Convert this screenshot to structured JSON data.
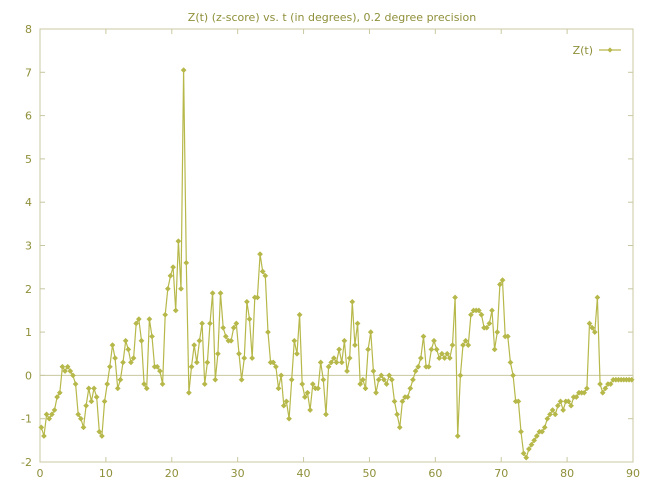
{
  "chart_data": {
    "type": "line",
    "title": "Z(t) (z-score) vs. t (in degrees), 0.2 degree precision",
    "xlabel": "",
    "ylabel": "",
    "xlim": [
      0,
      90
    ],
    "ylim": [
      -2,
      8
    ],
    "x_ticks": [
      0,
      10,
      20,
      30,
      40,
      50,
      60,
      70,
      80,
      90
    ],
    "y_ticks": [
      -2,
      -1,
      0,
      1,
      2,
      3,
      4,
      5,
      6,
      7,
      8
    ],
    "grid": false,
    "legend_position": "top-right",
    "series": [
      {
        "name": "Z(t)",
        "color": "#b7b84a",
        "marker": "diamond",
        "points": [
          [
            0.2,
            -1.2
          ],
          [
            0.6,
            -1.4
          ],
          [
            1.0,
            -0.9
          ],
          [
            1.4,
            -1.0
          ],
          [
            1.8,
            -0.9
          ],
          [
            2.2,
            -0.8
          ],
          [
            2.6,
            -0.5
          ],
          [
            3.0,
            -0.4
          ],
          [
            3.4,
            0.2
          ],
          [
            3.8,
            0.1
          ],
          [
            4.2,
            0.2
          ],
          [
            4.6,
            0.1
          ],
          [
            5.0,
            0.0
          ],
          [
            5.4,
            -0.2
          ],
          [
            5.8,
            -0.9
          ],
          [
            6.2,
            -1.0
          ],
          [
            6.6,
            -1.2
          ],
          [
            7.0,
            -0.7
          ],
          [
            7.4,
            -0.3
          ],
          [
            7.8,
            -0.6
          ],
          [
            8.2,
            -0.3
          ],
          [
            8.6,
            -0.5
          ],
          [
            9.0,
            -1.3
          ],
          [
            9.4,
            -1.4
          ],
          [
            9.8,
            -0.6
          ],
          [
            10.2,
            -0.2
          ],
          [
            10.6,
            0.2
          ],
          [
            11.0,
            0.7
          ],
          [
            11.4,
            0.4
          ],
          [
            11.8,
            -0.3
          ],
          [
            12.2,
            -0.1
          ],
          [
            12.6,
            0.3
          ],
          [
            13.0,
            0.8
          ],
          [
            13.4,
            0.6
          ],
          [
            13.8,
            0.3
          ],
          [
            14.2,
            0.4
          ],
          [
            14.6,
            1.2
          ],
          [
            15.0,
            1.3
          ],
          [
            15.4,
            0.8
          ],
          [
            15.8,
            -0.2
          ],
          [
            16.2,
            -0.3
          ],
          [
            16.6,
            1.3
          ],
          [
            17.0,
            0.9
          ],
          [
            17.4,
            0.2
          ],
          [
            17.8,
            0.2
          ],
          [
            18.2,
            0.1
          ],
          [
            18.6,
            -0.2
          ],
          [
            19.0,
            1.4
          ],
          [
            19.4,
            2.0
          ],
          [
            19.8,
            2.3
          ],
          [
            20.2,
            2.5
          ],
          [
            20.6,
            1.5
          ],
          [
            21.0,
            3.1
          ],
          [
            21.4,
            2.0
          ],
          [
            21.8,
            7.05
          ],
          [
            22.2,
            2.6
          ],
          [
            22.6,
            -0.4
          ],
          [
            23.0,
            0.2
          ],
          [
            23.4,
            0.7
          ],
          [
            23.8,
            0.3
          ],
          [
            24.2,
            0.8
          ],
          [
            24.6,
            1.2
          ],
          [
            25.0,
            -0.2
          ],
          [
            25.4,
            0.3
          ],
          [
            25.8,
            1.2
          ],
          [
            26.2,
            1.9
          ],
          [
            26.6,
            -0.1
          ],
          [
            27.0,
            0.5
          ],
          [
            27.4,
            1.9
          ],
          [
            27.8,
            1.1
          ],
          [
            28.2,
            0.9
          ],
          [
            28.6,
            0.8
          ],
          [
            29.0,
            0.8
          ],
          [
            29.4,
            1.1
          ],
          [
            29.8,
            1.2
          ],
          [
            30.2,
            0.5
          ],
          [
            30.6,
            -0.1
          ],
          [
            31.0,
            0.4
          ],
          [
            31.4,
            1.7
          ],
          [
            31.8,
            1.3
          ],
          [
            32.2,
            0.4
          ],
          [
            32.6,
            1.8
          ],
          [
            33.0,
            1.8
          ],
          [
            33.4,
            2.8
          ],
          [
            33.8,
            2.4
          ],
          [
            34.2,
            2.3
          ],
          [
            34.6,
            1.0
          ],
          [
            35.0,
            0.3
          ],
          [
            35.4,
            0.3
          ],
          [
            35.8,
            0.2
          ],
          [
            36.2,
            -0.3
          ],
          [
            36.6,
            0.0
          ],
          [
            37.0,
            -0.7
          ],
          [
            37.4,
            -0.6
          ],
          [
            37.8,
            -1.0
          ],
          [
            38.2,
            -0.1
          ],
          [
            38.6,
            0.8
          ],
          [
            39.0,
            0.5
          ],
          [
            39.4,
            1.4
          ],
          [
            39.8,
            -0.2
          ],
          [
            40.2,
            -0.5
          ],
          [
            40.6,
            -0.4
          ],
          [
            41.0,
            -0.8
          ],
          [
            41.4,
            -0.2
          ],
          [
            41.8,
            -0.3
          ],
          [
            42.2,
            -0.3
          ],
          [
            42.6,
            0.3
          ],
          [
            43.0,
            -0.1
          ],
          [
            43.4,
            -0.9
          ],
          [
            43.8,
            0.2
          ],
          [
            44.2,
            0.3
          ],
          [
            44.6,
            0.4
          ],
          [
            45.0,
            0.3
          ],
          [
            45.4,
            0.6
          ],
          [
            45.8,
            0.3
          ],
          [
            46.2,
            0.8
          ],
          [
            46.6,
            0.1
          ],
          [
            47.0,
            0.4
          ],
          [
            47.4,
            1.7
          ],
          [
            47.8,
            0.7
          ],
          [
            48.2,
            1.2
          ],
          [
            48.6,
            -0.2
          ],
          [
            49.0,
            -0.1
          ],
          [
            49.4,
            -0.3
          ],
          [
            49.8,
            0.6
          ],
          [
            50.2,
            1.0
          ],
          [
            50.6,
            0.1
          ],
          [
            51.0,
            -0.4
          ],
          [
            51.4,
            -0.1
          ],
          [
            51.8,
            0.0
          ],
          [
            52.2,
            -0.1
          ],
          [
            52.6,
            -0.2
          ],
          [
            53.0,
            0.0
          ],
          [
            53.4,
            -0.1
          ],
          [
            53.8,
            -0.6
          ],
          [
            54.2,
            -0.9
          ],
          [
            54.6,
            -1.2
          ],
          [
            55.0,
            -0.6
          ],
          [
            55.4,
            -0.5
          ],
          [
            55.8,
            -0.5
          ],
          [
            56.2,
            -0.3
          ],
          [
            56.6,
            -0.1
          ],
          [
            57.0,
            0.1
          ],
          [
            57.4,
            0.2
          ],
          [
            57.8,
            0.4
          ],
          [
            58.2,
            0.9
          ],
          [
            58.6,
            0.2
          ],
          [
            59.0,
            0.2
          ],
          [
            59.4,
            0.6
          ],
          [
            59.8,
            0.8
          ],
          [
            60.2,
            0.6
          ],
          [
            60.6,
            0.4
          ],
          [
            61.0,
            0.5
          ],
          [
            61.4,
            0.4
          ],
          [
            61.8,
            0.5
          ],
          [
            62.2,
            0.4
          ],
          [
            62.6,
            0.7
          ],
          [
            63.0,
            1.8
          ],
          [
            63.4,
            -1.4
          ],
          [
            63.8,
            0.0
          ],
          [
            64.2,
            0.7
          ],
          [
            64.6,
            0.8
          ],
          [
            65.0,
            0.7
          ],
          [
            65.4,
            1.4
          ],
          [
            65.8,
            1.5
          ],
          [
            66.2,
            1.5
          ],
          [
            66.6,
            1.5
          ],
          [
            67.0,
            1.4
          ],
          [
            67.4,
            1.1
          ],
          [
            67.8,
            1.1
          ],
          [
            68.2,
            1.2
          ],
          [
            68.6,
            1.5
          ],
          [
            69.0,
            0.6
          ],
          [
            69.4,
            1.0
          ],
          [
            69.8,
            2.1
          ],
          [
            70.2,
            2.2
          ],
          [
            70.6,
            0.9
          ],
          [
            71.0,
            0.9
          ],
          [
            71.4,
            0.3
          ],
          [
            71.8,
            0.0
          ],
          [
            72.2,
            -0.6
          ],
          [
            72.6,
            -0.6
          ],
          [
            73.0,
            -1.3
          ],
          [
            73.4,
            -1.8
          ],
          [
            73.8,
            -1.9
          ],
          [
            74.2,
            -1.7
          ],
          [
            74.6,
            -1.6
          ],
          [
            75.0,
            -1.5
          ],
          [
            75.4,
            -1.4
          ],
          [
            75.8,
            -1.3
          ],
          [
            76.2,
            -1.3
          ],
          [
            76.6,
            -1.2
          ],
          [
            77.0,
            -1.0
          ],
          [
            77.4,
            -0.9
          ],
          [
            77.8,
            -0.8
          ],
          [
            78.2,
            -0.9
          ],
          [
            78.6,
            -0.7
          ],
          [
            79.0,
            -0.6
          ],
          [
            79.4,
            -0.8
          ],
          [
            79.8,
            -0.6
          ],
          [
            80.2,
            -0.6
          ],
          [
            80.6,
            -0.7
          ],
          [
            81.0,
            -0.5
          ],
          [
            81.4,
            -0.5
          ],
          [
            81.8,
            -0.4
          ],
          [
            82.2,
            -0.4
          ],
          [
            82.6,
            -0.4
          ],
          [
            83.0,
            -0.3
          ],
          [
            83.4,
            1.2
          ],
          [
            83.8,
            1.1
          ],
          [
            84.2,
            1.0
          ],
          [
            84.6,
            1.8
          ],
          [
            85.0,
            -0.2
          ],
          [
            85.4,
            -0.4
          ],
          [
            85.8,
            -0.3
          ],
          [
            86.2,
            -0.2
          ],
          [
            86.6,
            -0.2
          ],
          [
            87.0,
            -0.1
          ],
          [
            87.4,
            -0.1
          ],
          [
            87.8,
            -0.1
          ],
          [
            88.2,
            -0.1
          ],
          [
            88.6,
            -0.1
          ],
          [
            89.0,
            -0.1
          ],
          [
            89.4,
            -0.1
          ],
          [
            89.8,
            -0.1
          ]
        ]
      }
    ]
  }
}
